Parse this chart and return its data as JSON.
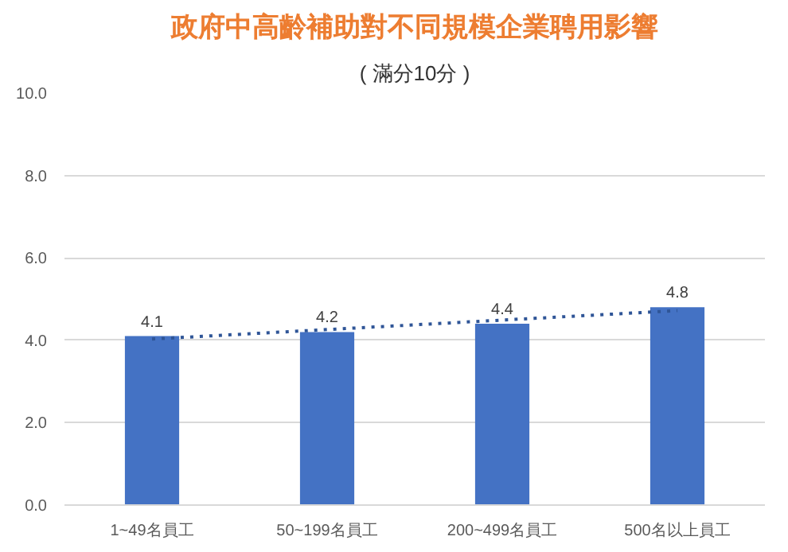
{
  "chart_data": {
    "type": "bar",
    "title": "政府中高齡補助對不同規模企業聘用影響",
    "subtitle": "( 滿分10分 )",
    "categories": [
      "1~49名員工",
      "50~199名員工",
      "200~499名員工",
      "500名以上員工"
    ],
    "series": [
      {
        "color": "#4472c4",
        "values": [
          4.1,
          4.2,
          4.4,
          4.8
        ],
        "data_labels": true
      },
      {
        "type": "line",
        "line_style": "dotted",
        "color": "#2f5597",
        "values": [
          4.03,
          4.26,
          4.49,
          4.72
        ]
      }
    ],
    "ylim": [
      0,
      10
    ],
    "yticks": [
      {
        "value": 0,
        "label": "0.0"
      },
      {
        "value": 2,
        "label": "2.0"
      },
      {
        "value": 4,
        "label": "4.0"
      },
      {
        "value": 6,
        "label": "6.0"
      },
      {
        "value": 8,
        "label": "8.0"
      },
      {
        "value": 10,
        "label": "10.0"
      }
    ],
    "grid": "y"
  }
}
